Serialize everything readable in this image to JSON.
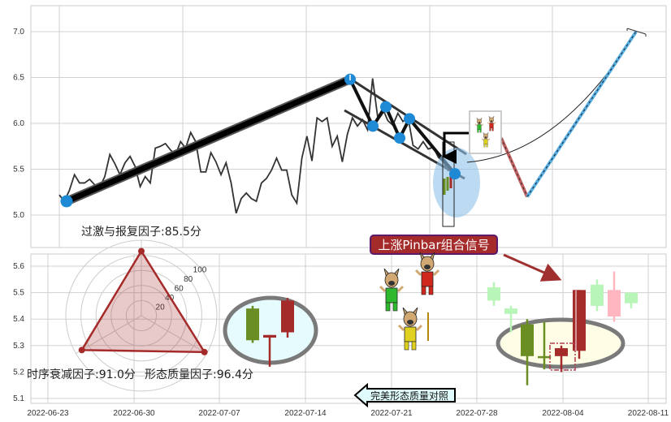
{
  "chart_data": [
    {
      "type": "line",
      "panel": "top",
      "yticks": [
        "5.0",
        "5.5",
        "6.0",
        "6.5",
        "7.0"
      ],
      "ylim": [
        4.6,
        7.3
      ],
      "grid": true,
      "price_line": [
        5.22,
        5.15,
        5.27,
        5.44,
        5.35,
        5.35,
        5.39,
        5.33,
        5.3,
        5.42,
        5.66,
        5.56,
        5.44,
        5.57,
        5.64,
        5.53,
        5.31,
        5.42,
        5.35,
        5.73,
        5.75,
        5.78,
        5.71,
        5.66,
        5.8,
        5.73,
        5.9,
        5.8,
        5.47,
        5.47,
        5.68,
        5.58,
        5.44,
        5.57,
        5.35,
        5.02,
        5.18,
        5.24,
        5.18,
        5.15,
        5.35,
        5.4,
        5.49,
        5.62,
        5.49,
        5.49,
        5.22,
        5.13,
        5.62,
        5.86,
        5.59,
        6.06,
        6.02,
        6.06,
        5.75,
        5.86,
        5.58,
        5.88,
        6.06,
        5.97,
        6.04,
        5.93,
        6.49,
        6.07,
        6.16,
        6.03,
        5.98,
        6.11,
        6.02,
        6.07,
        5.76,
        5.72,
        5.8,
        5.72,
        5.74,
        5.63,
        5.58,
        5.48
      ],
      "pivots": [
        5.15,
        6.48,
        5.97,
        6.18,
        5.84,
        6.05,
        5.45
      ],
      "projection": [
        5.6,
        5.2,
        7.0
      ],
      "colors": {
        "line": "#333333",
        "pivot": "#1e8ad6",
        "trend": "#111111",
        "up_projection": "#5aaee0",
        "down_projection": "#c06060"
      }
    },
    {
      "type": "candlestick",
      "panel": "bottom",
      "yticks": [
        "5.1",
        "5.2",
        "5.3",
        "5.4",
        "5.5",
        "5.6"
      ],
      "ylim": [
        5.08,
        5.65
      ],
      "xticks": [
        "2022-06-23",
        "2022-06-30",
        "2022-07-07",
        "2022-07-14",
        "2022-07-21",
        "2022-07-28",
        "2022-08-04",
        "2022-08-11"
      ],
      "grid": true,
      "candles": [
        {
          "open": 5.52,
          "close": 5.47,
          "high": 5.54,
          "low": 5.45,
          "color": "#b8f5b8"
        },
        {
          "open": 5.44,
          "close": 5.42,
          "high": 5.45,
          "low": 5.35,
          "color": "#b8f5b8"
        },
        {
          "open": 5.38,
          "close": 5.26,
          "high": 5.4,
          "low": 5.15,
          "color": "#6b8e23"
        },
        {
          "open": 5.26,
          "close": 5.26,
          "high": 5.39,
          "low": 5.21,
          "color": "#6b8e23"
        },
        {
          "open": 5.26,
          "close": 5.29,
          "high": 5.3,
          "low": 5.2,
          "color": "#a52a2a"
        },
        {
          "open": 5.28,
          "close": 5.51,
          "high": 5.51,
          "low": 5.25,
          "color": "#a52a2a"
        },
        {
          "open": 5.53,
          "close": 5.45,
          "high": 5.55,
          "low": 5.43,
          "color": "#b8f5b8"
        },
        {
          "open": 5.41,
          "close": 5.51,
          "high": 5.58,
          "low": 5.39,
          "color": "#ffb6c1"
        },
        {
          "open": 5.5,
          "close": 5.46,
          "high": 5.5,
          "low": 5.44,
          "color": "#b8f5b8"
        }
      ],
      "reference_candles": [
        {
          "open": 5.44,
          "close": 5.32,
          "high": 5.45,
          "low": 5.31,
          "color": "#6b8e23"
        },
        {
          "open": 5.33,
          "close": 5.34,
          "high": 5.34,
          "low": 5.22,
          "color": "#a52a2a"
        },
        {
          "open": 5.35,
          "close": 5.47,
          "high": 5.48,
          "low": 5.33,
          "color": "#a52a2a"
        }
      ]
    },
    {
      "type": "radar",
      "rticks": [
        "20",
        "40",
        "60",
        "80",
        "100"
      ],
      "axes": [
        {
          "label": "过激与报复因子:85.5分",
          "value": 85.5
        },
        {
          "label": "形态质量因子:96.4分",
          "value": 96.4
        },
        {
          "label": "时序衰减因子:91.0分",
          "value": 91.0
        }
      ],
      "color": "#a52a2a"
    }
  ],
  "annotations": {
    "signal_label": "上涨Pinbar组合信号",
    "compare_label": "完美形态质量对照"
  }
}
